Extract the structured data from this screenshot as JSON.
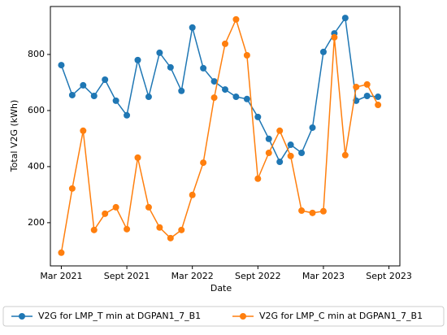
{
  "chart_data": {
    "type": "line",
    "x_label": "Date",
    "y_label": "Total V2G (kWh)",
    "x": [
      "2021-03",
      "2021-04",
      "2021-05",
      "2021-06",
      "2021-07",
      "2021-08",
      "2021-09",
      "2021-10",
      "2021-11",
      "2021-12",
      "2022-01",
      "2022-02",
      "2022-03",
      "2022-04",
      "2022-05",
      "2022-06",
      "2022-07",
      "2022-08",
      "2022-09",
      "2022-10",
      "2022-11",
      "2022-12",
      "2023-01",
      "2023-02",
      "2023-03",
      "2023-04",
      "2023-05",
      "2023-06",
      "2023-07",
      "2023-08"
    ],
    "series": [
      {
        "name": "V2G for LMP_T min at DGPAN1_7_B1",
        "color": "#1f77b4",
        "values": [
          762,
          655,
          690,
          652,
          710,
          635,
          583,
          780,
          649,
          806,
          754,
          670,
          896,
          751,
          704,
          675,
          649,
          641,
          577,
          499,
          417,
          478,
          449,
          539,
          809,
          875,
          930,
          635,
          652,
          649
        ]
      },
      {
        "name": "V2G for LMP_C min at DGPAN1_7_B1",
        "color": "#ff7f0e",
        "values": [
          93,
          322,
          528,
          174,
          232,
          255,
          177,
          432,
          255,
          183,
          145,
          174,
          299,
          414,
          646,
          838,
          925,
          797,
          357,
          449,
          528,
          438,
          243,
          235,
          241,
          861,
          441,
          684,
          693,
          620
        ]
      }
    ],
    "xlim": [
      "2021-02",
      "2023-10"
    ],
    "xticks": [
      {
        "value": "2021-03",
        "label": "Mar 2021"
      },
      {
        "value": "2021-09",
        "label": "Sept 2021"
      },
      {
        "value": "2022-03",
        "label": "Mar 2022"
      },
      {
        "value": "2022-09",
        "label": "Sept 2022"
      },
      {
        "value": "2023-03",
        "label": "Mar 2023"
      },
      {
        "value": "2023-09",
        "label": "Sept 2023"
      }
    ],
    "ylim": [
      46,
      971
    ],
    "yticks": [
      200,
      400,
      600,
      800
    ],
    "legend": "bottom"
  }
}
